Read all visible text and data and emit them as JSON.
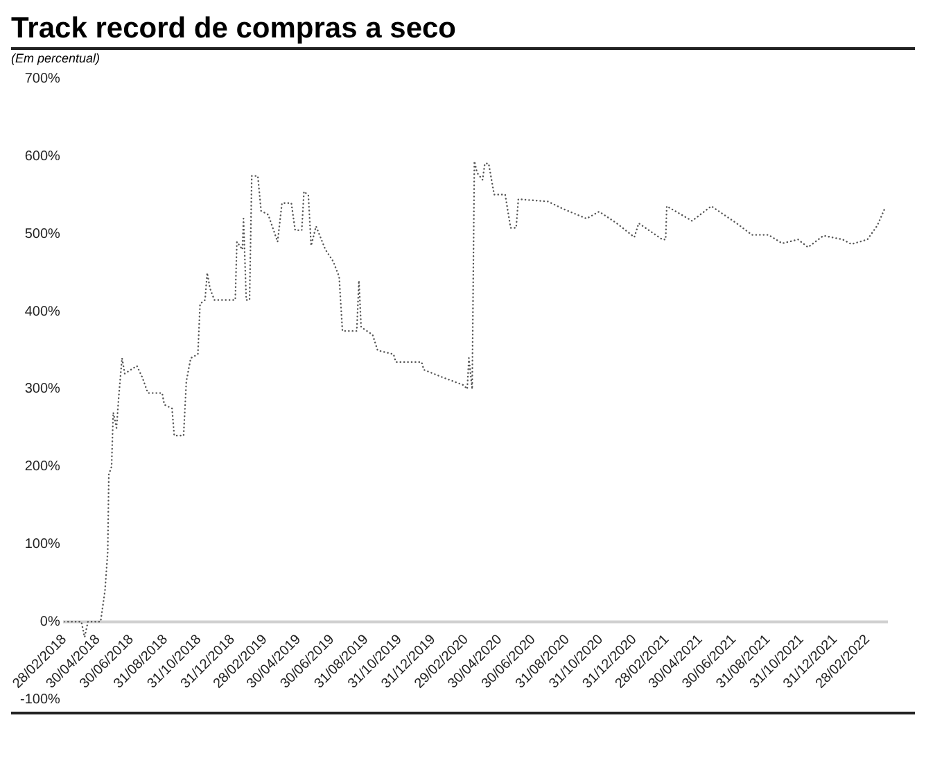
{
  "chart_data": {
    "type": "line",
    "title": "Track record de compras a seco",
    "subtitle": "(Em percentual)",
    "x": [
      "2018-02-28",
      "2018-03-31",
      "2018-04-06",
      "2018-04-12",
      "2018-05-05",
      "2018-05-13",
      "2018-05-18",
      "2018-05-20",
      "2018-05-25",
      "2018-05-28",
      "2018-06-03",
      "2018-06-07",
      "2018-06-13",
      "2018-06-18",
      "2018-07-10",
      "2018-07-20",
      "2018-07-30",
      "2018-08-25",
      "2018-08-29",
      "2018-09-12",
      "2018-09-16",
      "2018-10-03",
      "2018-10-08",
      "2018-10-16",
      "2018-10-29",
      "2018-11-02",
      "2018-11-11",
      "2018-11-15",
      "2018-11-20",
      "2018-11-28",
      "2019-01-05",
      "2019-01-08",
      "2019-01-18",
      "2019-01-20",
      "2019-01-25",
      "2019-01-31",
      "2019-02-04",
      "2019-02-15",
      "2019-02-21",
      "2019-03-06",
      "2019-03-23",
      "2019-03-31",
      "2019-04-17",
      "2019-04-24",
      "2019-05-06",
      "2019-05-10",
      "2019-05-18",
      "2019-05-23",
      "2019-06-01",
      "2019-06-18",
      "2019-07-02",
      "2019-07-13",
      "2019-07-19",
      "2019-08-14",
      "2019-08-18",
      "2019-08-22",
      "2019-09-12",
      "2019-09-21",
      "2019-10-20",
      "2019-10-24",
      "2019-12-10",
      "2019-12-14",
      "2020-01-18",
      "2020-02-25",
      "2020-03-02",
      "2020-03-05",
      "2020-03-11",
      "2020-03-15",
      "2020-03-20",
      "2020-03-30",
      "2020-04-03",
      "2020-04-10",
      "2020-04-20",
      "2020-05-10",
      "2020-05-20",
      "2020-05-30",
      "2020-06-03",
      "2020-07-27",
      "2020-08-25",
      "2020-10-05",
      "2020-10-28",
      "2020-11-29",
      "2020-12-31",
      "2021-01-08",
      "2021-02-20",
      "2021-02-26",
      "2021-02-28",
      "2021-04-15",
      "2021-05-20",
      "2021-07-05",
      "2021-08-02",
      "2021-09-01",
      "2021-09-26",
      "2021-10-25",
      "2021-11-12",
      "2021-12-10",
      "2022-01-14",
      "2022-01-30",
      "2022-02-28",
      "2022-03-18",
      "2022-03-31"
    ],
    "series": [
      {
        "color": "#555555",
        "values": [
          0,
          0,
          -20,
          0,
          0,
          40,
          90,
          190,
          200,
          270,
          250,
          290,
          340,
          320,
          330,
          315,
          295,
          295,
          280,
          275,
          240,
          240,
          310,
          340,
          345,
          410,
          415,
          450,
          430,
          415,
          415,
          490,
          480,
          520,
          415,
          415,
          575,
          575,
          530,
          525,
          490,
          540,
          540,
          505,
          505,
          555,
          550,
          485,
          510,
          480,
          465,
          445,
          375,
          375,
          440,
          380,
          370,
          350,
          345,
          335,
          335,
          325,
          315,
          305,
          300,
          340,
          300,
          594,
          579,
          570,
          591,
          591,
          551,
          551,
          508,
          508,
          545,
          542,
          532,
          520,
          529,
          514,
          496,
          514,
          493,
          493,
          536,
          517,
          536,
          514,
          499,
          499,
          488,
          493,
          483,
          498,
          493,
          487,
          493,
          511,
          532
        ]
      }
    ],
    "xlim": [
      "2018-02-28",
      "2022-04-05"
    ],
    "xticks": [
      {
        "value": "2018-02-28",
        "label": "28/02/2018"
      },
      {
        "value": "2018-04-30",
        "label": "30/04/2018"
      },
      {
        "value": "2018-06-30",
        "label": "30/06/2018"
      },
      {
        "value": "2018-08-31",
        "label": "31/08/2018"
      },
      {
        "value": "2018-10-31",
        "label": "31/10/2018"
      },
      {
        "value": "2018-12-31",
        "label": "31/12/2018"
      },
      {
        "value": "2019-02-28",
        "label": "28/02/2019"
      },
      {
        "value": "2019-04-30",
        "label": "30/04/2019"
      },
      {
        "value": "2019-06-30",
        "label": "30/06/2019"
      },
      {
        "value": "2019-08-31",
        "label": "31/08/2019"
      },
      {
        "value": "2019-10-31",
        "label": "31/10/2019"
      },
      {
        "value": "2019-12-31",
        "label": "31/12/2019"
      },
      {
        "value": "2020-02-29",
        "label": "29/02/2020"
      },
      {
        "value": "2020-04-30",
        "label": "30/04/2020"
      },
      {
        "value": "2020-06-30",
        "label": "30/06/2020"
      },
      {
        "value": "2020-08-31",
        "label": "31/08/2020"
      },
      {
        "value": "2020-10-31",
        "label": "31/10/2020"
      },
      {
        "value": "2020-12-31",
        "label": "31/12/2020"
      },
      {
        "value": "2021-02-28",
        "label": "28/02/2021"
      },
      {
        "value": "2021-04-30",
        "label": "30/04/2021"
      },
      {
        "value": "2021-06-30",
        "label": "30/06/2021"
      },
      {
        "value": "2021-08-31",
        "label": "31/08/2021"
      },
      {
        "value": "2021-10-31",
        "label": "31/10/2021"
      },
      {
        "value": "2021-12-31",
        "label": "31/12/2021"
      },
      {
        "value": "2022-02-28",
        "label": "28/02/2022"
      }
    ],
    "ylim": [
      -100,
      700
    ],
    "yticks": [
      {
        "value": -100,
        "label": "-100%"
      },
      {
        "value": 0,
        "label": "0%"
      },
      {
        "value": 100,
        "label": "100%"
      },
      {
        "value": 200,
        "label": "200%"
      },
      {
        "value": 300,
        "label": "300%"
      },
      {
        "value": 400,
        "label": "400%"
      },
      {
        "value": 500,
        "label": "500%"
      },
      {
        "value": 600,
        "label": "600%"
      },
      {
        "value": 700,
        "label": "700%"
      }
    ],
    "grid": false,
    "legend": false,
    "marker": "none",
    "line_style": "dotted"
  }
}
